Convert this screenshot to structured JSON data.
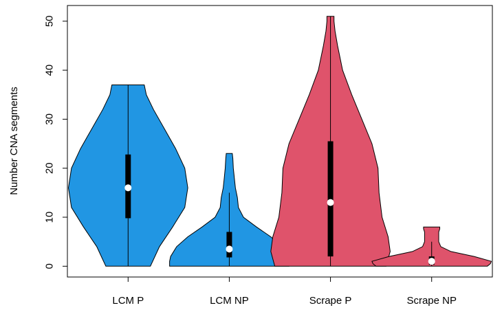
{
  "chart_data": {
    "type": "violin",
    "title": "",
    "xlabel": "",
    "ylabel": "Number CNA segments",
    "ylim": [
      -2.2,
      53.2
    ],
    "yticks": [
      0,
      10,
      20,
      30,
      40,
      50
    ],
    "grid": false,
    "legend": "none",
    "categories": [
      "LCM P",
      "LCM NP",
      "Scrape P",
      "Scrape  NP"
    ],
    "groups": [
      {
        "name": "LCM P",
        "color": "#2196E3",
        "min": 0,
        "q1": 9.8,
        "median": 16,
        "q3": 22.8,
        "max": 37,
        "whisker_low": 0,
        "whisker_high": 37,
        "density": [
          [
            0,
            0.22
          ],
          [
            4,
            0.31
          ],
          [
            8,
            0.44
          ],
          [
            12,
            0.56
          ],
          [
            16,
            0.59
          ],
          [
            20,
            0.56
          ],
          [
            24,
            0.47
          ],
          [
            28,
            0.36
          ],
          [
            32,
            0.25
          ],
          [
            35,
            0.18
          ],
          [
            37,
            0.16
          ]
        ]
      },
      {
        "name": "LCM NP",
        "color": "#2196E3",
        "min": 0,
        "q1": 1.8,
        "median": 3.5,
        "q3": 7,
        "max": 23,
        "whisker_low": 0,
        "whisker_high": 15,
        "density": [
          [
            0,
            0.59
          ],
          [
            1,
            0.59
          ],
          [
            2,
            0.58
          ],
          [
            4,
            0.52
          ],
          [
            6,
            0.41
          ],
          [
            8,
            0.27
          ],
          [
            10,
            0.14
          ],
          [
            12,
            0.09
          ],
          [
            14,
            0.08
          ],
          [
            16,
            0.06
          ],
          [
            18,
            0.05
          ],
          [
            20,
            0.04
          ],
          [
            22,
            0.035
          ],
          [
            23,
            0.03
          ]
        ]
      },
      {
        "name": "Scrape P",
        "color": "#DF536B",
        "min": 0,
        "q1": 2,
        "median": 13,
        "q3": 25.5,
        "max": 51,
        "whisker_low": 0,
        "whisker_high": 51,
        "density": [
          [
            0,
            0.55
          ],
          [
            3,
            0.59
          ],
          [
            6,
            0.57
          ],
          [
            10,
            0.51
          ],
          [
            15,
            0.48
          ],
          [
            20,
            0.47
          ],
          [
            25,
            0.41
          ],
          [
            30,
            0.31
          ],
          [
            35,
            0.21
          ],
          [
            40,
            0.12
          ],
          [
            45,
            0.07
          ],
          [
            48,
            0.045
          ],
          [
            50,
            0.035
          ],
          [
            51,
            0.035
          ]
        ]
      },
      {
        "name": "Scrape  NP",
        "color": "#DF536B",
        "min": 0,
        "q1": 0.3,
        "median": 1,
        "q3": 2,
        "max": 8,
        "whisker_low": 0,
        "whisker_high": 5,
        "density": [
          [
            0,
            0.55
          ],
          [
            0.5,
            0.58
          ],
          [
            1,
            0.59
          ],
          [
            2,
            0.42
          ],
          [
            3,
            0.19
          ],
          [
            4,
            0.09
          ],
          [
            5,
            0.07
          ],
          [
            6,
            0.07
          ],
          [
            7,
            0.07
          ],
          [
            7.6,
            0.08
          ],
          [
            8,
            0.08
          ]
        ]
      }
    ]
  }
}
